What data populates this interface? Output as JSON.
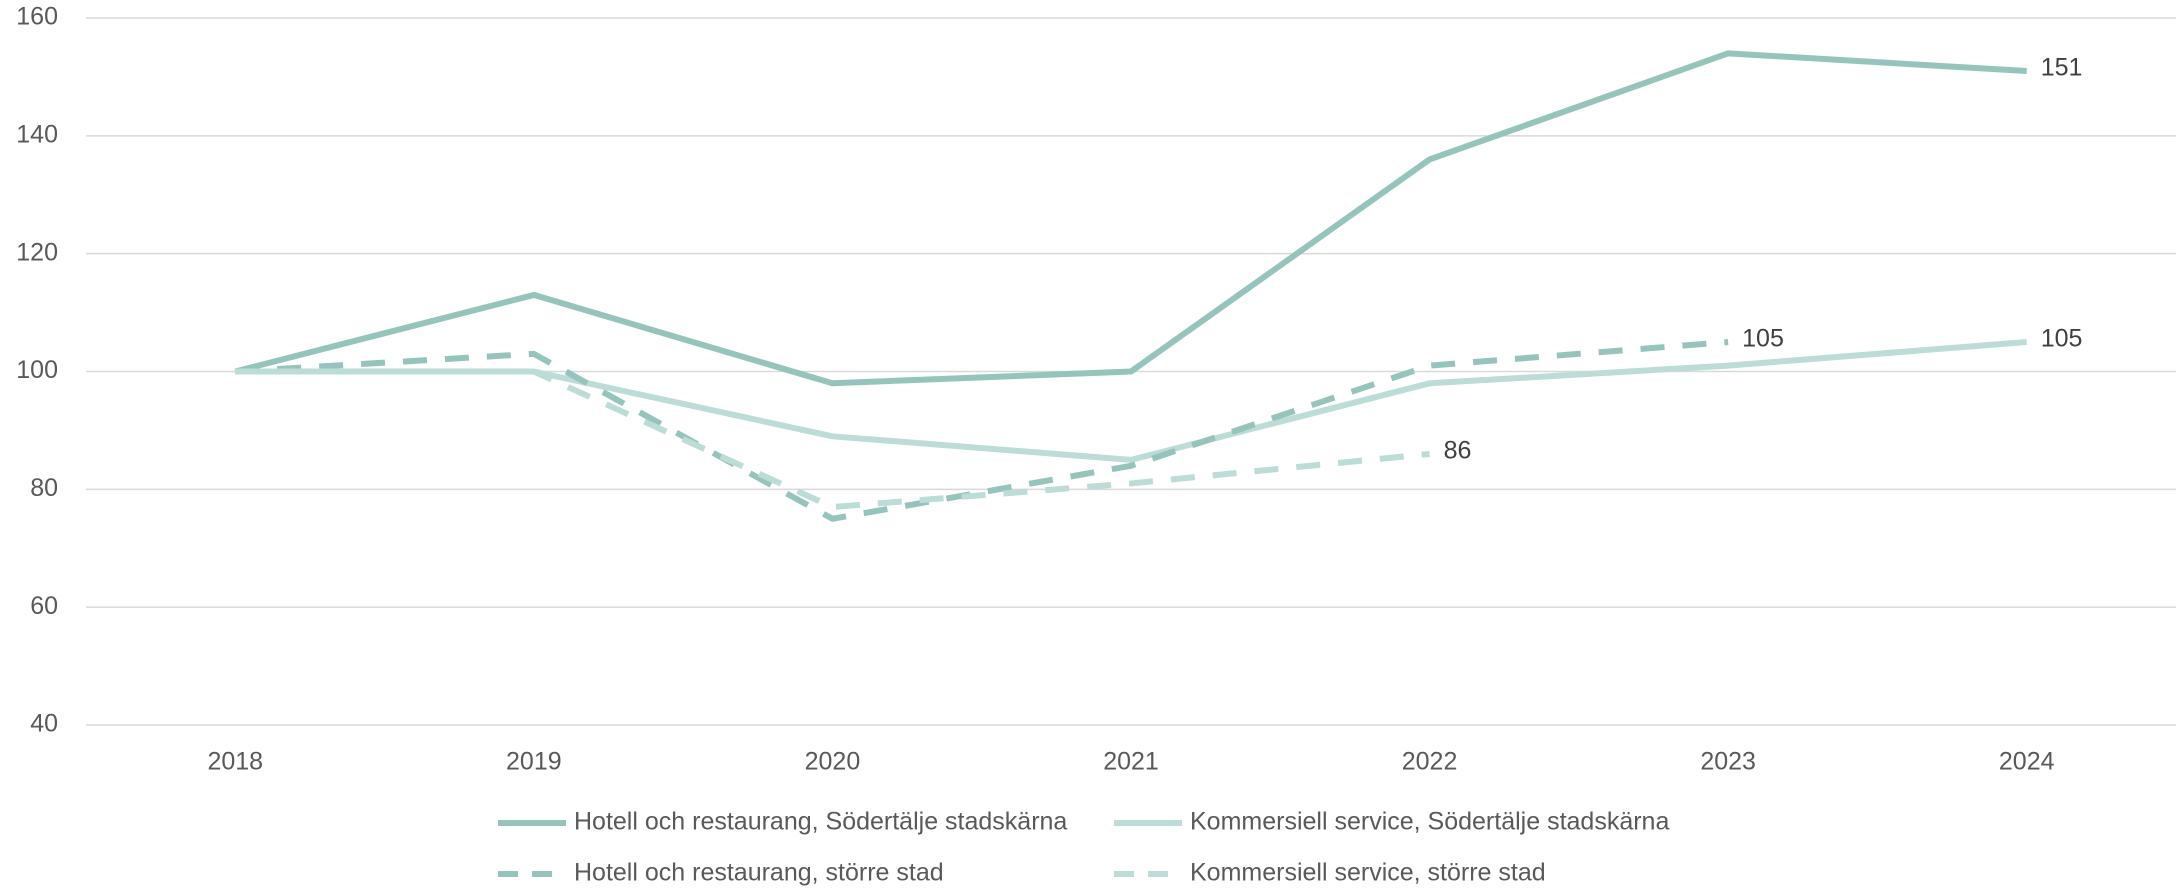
{
  "chart_data": {
    "type": "line",
    "categories": [
      "2018",
      "2019",
      "2020",
      "2021",
      "2022",
      "2023",
      "2024"
    ],
    "series": [
      {
        "name": "Hotell och restaurang, Södertälje stadskärna",
        "color": "#95c4bd",
        "dashed": false,
        "values": [
          100,
          113,
          98,
          100,
          136,
          154,
          151
        ]
      },
      {
        "name": "Kommersiell service, Södertälje stadskärna",
        "color": "#bcdcd7",
        "dashed": false,
        "values": [
          100,
          100,
          89,
          85,
          98,
          101,
          105
        ]
      },
      {
        "name": "Hotell och restaurang, större stad",
        "color": "#95c4bd",
        "dashed": true,
        "values": [
          100,
          103,
          75,
          84,
          101,
          105,
          null
        ]
      },
      {
        "name": "Kommersiell service, större stad",
        "color": "#bcdcd7",
        "dashed": true,
        "values": [
          100,
          100,
          77,
          81,
          86,
          null,
          null
        ]
      }
    ],
    "ylim": [
      40,
      160
    ],
    "yticks": [
      40,
      60,
      80,
      100,
      120,
      140,
      160
    ],
    "grid": true,
    "legend": "bottom"
  }
}
